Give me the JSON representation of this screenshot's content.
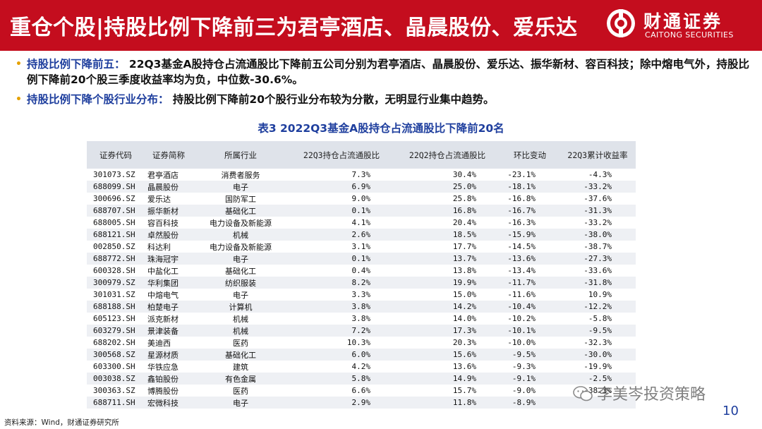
{
  "header": {
    "title": "重仓个股|持股比例下降前三为君亭酒店、晶晨股份、爱乐达",
    "logo_cn": "财通证券",
    "logo_en": "CAITONG SECURITIES",
    "bg_color": "#c40d1e"
  },
  "bullets": [
    {
      "label": "持股比例下降前五：",
      "text": "22Q3基金A股持仓占流通股比下降前五公司分别为君亭酒店、晶晨股份、爱乐达、振华新材、容百科技；除中熔电气外，持股比例下降前20个股三季度收益率均为负，中位数-30.6%。"
    },
    {
      "label": "持股比例下降个股行业分布：",
      "text": "持股比例下降前20个股行业分布较为分散，无明显行业集中趋势。"
    }
  ],
  "table": {
    "title": "表3 2022Q3基金A股持仓占流通股比下降前20名",
    "headers": [
      "证券代码",
      "证券简称",
      "所属行业",
      "22Q3持仓占流通股比",
      "22Q2持仓占流通股比",
      "环比变动",
      "22Q3累计收益率"
    ],
    "rows": [
      [
        "301073.SZ",
        "君亭酒店",
        "消费者服务",
        "7.3%",
        "30.4%",
        "-23.1%",
        "-4.3%"
      ],
      [
        "688099.SH",
        "晶晨股份",
        "电子",
        "6.9%",
        "25.0%",
        "-18.1%",
        "-33.2%"
      ],
      [
        "300696.SZ",
        "爱乐达",
        "国防军工",
        "9.0%",
        "25.8%",
        "-16.8%",
        "-37.6%"
      ],
      [
        "688707.SH",
        "振华新材",
        "基础化工",
        "0.1%",
        "16.8%",
        "-16.7%",
        "-31.3%"
      ],
      [
        "688005.SH",
        "容百科技",
        "电力设备及新能源",
        "4.1%",
        "20.4%",
        "-16.3%",
        "-33.2%"
      ],
      [
        "688121.SH",
        "卓然股份",
        "机械",
        "2.6%",
        "18.5%",
        "-15.9%",
        "-38.0%"
      ],
      [
        "002850.SZ",
        "科达利",
        "电力设备及新能源",
        "3.1%",
        "17.7%",
        "-14.5%",
        "-38.7%"
      ],
      [
        "688772.SH",
        "珠海冠宇",
        "电子",
        "0.1%",
        "13.7%",
        "-13.6%",
        "-27.3%"
      ],
      [
        "600328.SH",
        "中盐化工",
        "基础化工",
        "0.4%",
        "13.8%",
        "-13.4%",
        "-33.6%"
      ],
      [
        "300979.SZ",
        "华利集团",
        "纺织服装",
        "8.2%",
        "19.9%",
        "-11.7%",
        "-31.8%"
      ],
      [
        "301031.SZ",
        "中熔电气",
        "电子",
        "3.3%",
        "15.0%",
        "-11.6%",
        "10.9%"
      ],
      [
        "688188.SH",
        "柏楚电子",
        "计算机",
        "3.8%",
        "14.2%",
        "-10.4%",
        "-12.2%"
      ],
      [
        "605123.SH",
        "派克新材",
        "机械",
        "3.8%",
        "14.0%",
        "-10.2%",
        "-5.8%"
      ],
      [
        "603279.SH",
        "景津装备",
        "机械",
        "7.2%",
        "17.3%",
        "-10.1%",
        "-9.5%"
      ],
      [
        "688202.SH",
        "美迪西",
        "医药",
        "10.3%",
        "20.3%",
        "-10.0%",
        "-32.3%"
      ],
      [
        "300568.SZ",
        "星源材质",
        "基础化工",
        "6.0%",
        "15.6%",
        "-9.5%",
        "-30.0%"
      ],
      [
        "603300.SH",
        "华铁应急",
        "建筑",
        "4.2%",
        "13.6%",
        "-9.3%",
        "-19.9%"
      ],
      [
        "003038.SZ",
        "鑫铂股份",
        "有色金属",
        "5.8%",
        "14.9%",
        "-9.1%",
        "-2.5%"
      ],
      [
        "300363.SZ",
        "博腾股份",
        "医药",
        "6.6%",
        "15.7%",
        "-9.0%",
        "-38.3%"
      ],
      [
        "688711.SH",
        "宏微科技",
        "电子",
        "2.9%",
        "11.8%",
        "-8.9%",
        ""
      ]
    ]
  },
  "footer": {
    "source": "资料来源：Wind，财通证券研究所",
    "page_number": "10",
    "watermark": "李美岑投资策略"
  },
  "colors": {
    "accent_blue": "#1f3f9e",
    "bullet_dot": "#e5a100",
    "header_row": "#dfe3ea",
    "stripe_row": "#eef0f4"
  }
}
